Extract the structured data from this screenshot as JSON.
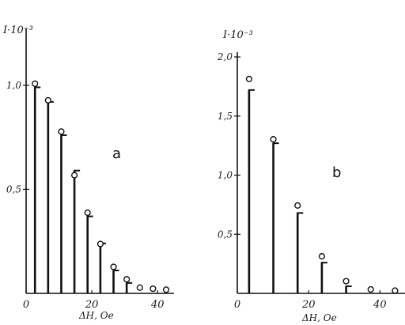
{
  "chart_data": [
    {
      "type": "bar",
      "panel_label": "a",
      "ylabel": "I·10⁻³",
      "xlabel": "ΔH, Oe",
      "xlim": [
        0,
        45
      ],
      "ylim": [
        0,
        1.25
      ],
      "xticks": [
        0,
        20,
        40
      ],
      "xtick_labels": [
        "0",
        "20",
        "40"
      ],
      "yticks": [
        0.5,
        1.0
      ],
      "ytick_labels": [
        "0,5",
        "1,0"
      ],
      "bars": [
        {
          "x": 2.7,
          "value": 0.99
        },
        {
          "x": 6.7,
          "value": 0.92
        },
        {
          "x": 10.7,
          "value": 0.76
        },
        {
          "x": 14.7,
          "value": 0.59
        },
        {
          "x": 18.7,
          "value": 0.37
        },
        {
          "x": 22.6,
          "value": 0.24
        },
        {
          "x": 26.6,
          "value": 0.11
        },
        {
          "x": 30.6,
          "value": 0.05
        }
      ],
      "points": [
        {
          "x": 2.7,
          "value": 1.0
        },
        {
          "x": 6.7,
          "value": 0.92
        },
        {
          "x": 10.7,
          "value": 0.77
        },
        {
          "x": 14.7,
          "value": 0.56
        },
        {
          "x": 18.7,
          "value": 0.38
        },
        {
          "x": 22.6,
          "value": 0.23
        },
        {
          "x": 26.6,
          "value": 0.12
        },
        {
          "x": 30.6,
          "value": 0.06
        },
        {
          "x": 34.6,
          "value": 0.02
        },
        {
          "x": 38.6,
          "value": 0.015
        },
        {
          "x": 42.6,
          "value": 0.01
        }
      ]
    },
    {
      "type": "bar",
      "panel_label": "b",
      "ylabel": "I·10⁻³",
      "xlabel": "ΔH, Oe",
      "xlim": [
        0,
        47
      ],
      "ylim": [
        0,
        2.0
      ],
      "xticks": [
        0,
        20,
        40
      ],
      "xtick_labels": [
        "0",
        "20",
        "40"
      ],
      "yticks": [
        0.5,
        1.0,
        1.5,
        2.0
      ],
      "ytick_labels": [
        "0,5",
        "1,0",
        "1,5",
        "2,0"
      ],
      "bars": [
        {
          "x": 3.3,
          "value": 1.72
        },
        {
          "x": 10.1,
          "value": 1.27
        },
        {
          "x": 16.9,
          "value": 0.68
        },
        {
          "x": 23.7,
          "value": 0.26
        },
        {
          "x": 30.5,
          "value": 0.06
        }
      ],
      "points": [
        {
          "x": 3.3,
          "value": 1.8
        },
        {
          "x": 10.1,
          "value": 1.29
        },
        {
          "x": 16.9,
          "value": 0.73
        },
        {
          "x": 23.7,
          "value": 0.3
        },
        {
          "x": 30.5,
          "value": 0.09
        },
        {
          "x": 37.4,
          "value": 0.02
        },
        {
          "x": 44.2,
          "value": 0.01
        }
      ]
    }
  ]
}
